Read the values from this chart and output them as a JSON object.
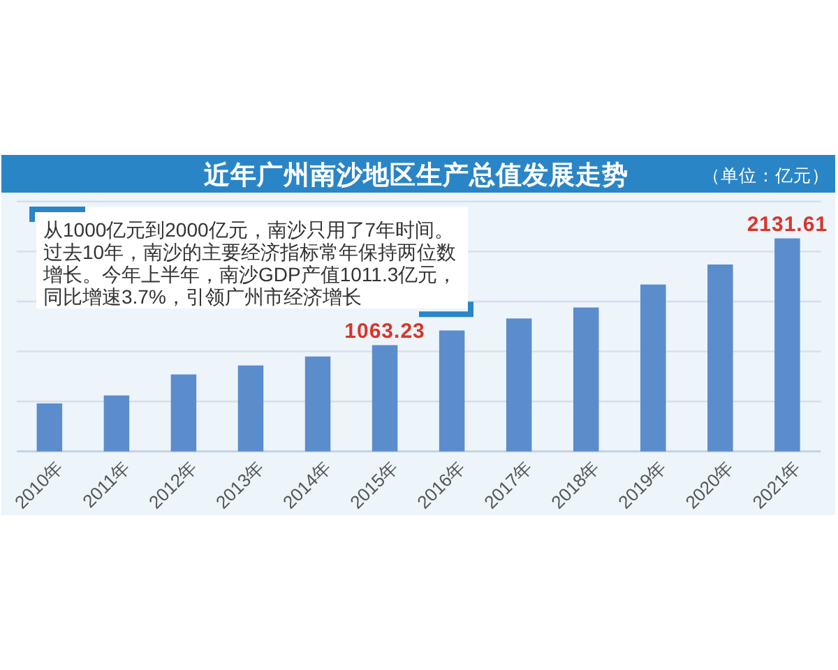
{
  "chart_data": {
    "type": "bar",
    "title": "近年广州南沙地区生产总值发展走势",
    "subtitle": "（单位：亿元）",
    "annotations": [
      "从1000亿元到2000亿元，南沙只用了7年时间。过去10年，南沙的主要经济指标常年保持两位数增长。今年上半年，南沙GDP产值1011.3亿元，同比增速3.7%，引领广州市经济增长"
    ],
    "categories": [
      "2010年",
      "2011年",
      "2012年",
      "2013年",
      "2014年",
      "2015年",
      "2016年",
      "2017年",
      "2018年",
      "2019年",
      "2020年",
      "2021年"
    ],
    "values": [
      480,
      560,
      770,
      860,
      950,
      1063.23,
      1210,
      1330,
      1440,
      1670,
      1870,
      2131.61
    ],
    "value_labels": [
      null,
      null,
      null,
      null,
      null,
      "1063.23",
      null,
      null,
      null,
      null,
      null,
      "2131.61"
    ],
    "color": "#5b8ccc",
    "ylim": [
      0,
      2500
    ],
    "yticks": [
      {
        "value": 500,
        "label": null
      },
      {
        "value": 1000,
        "label": null
      },
      {
        "value": 1500,
        "label": null
      },
      {
        "value": 2000,
        "label": null
      },
      {
        "value": 2500,
        "label": null
      }
    ],
    "tick_labels": "x",
    "grid": "y"
  }
}
